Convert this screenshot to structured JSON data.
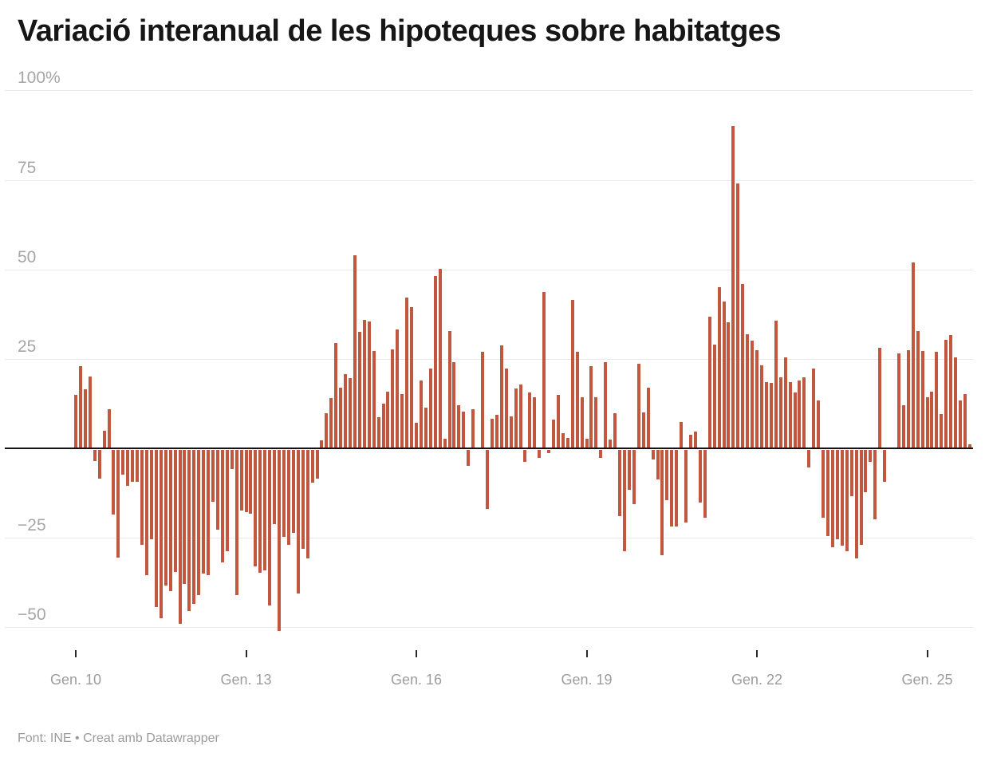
{
  "title": "Variació interanual de les hipoteques sobre habitatges",
  "footer": "Font: INE • Creat amb Datawrapper",
  "colors": {
    "bar": "#c1573e",
    "grid": "#e9e9e9",
    "zero_line": "#141414",
    "axis_text": "#a6a6a6",
    "x_axis_text": "#9d9d9d",
    "title_text": "#161616",
    "footer_text": "#9b9b9b",
    "background": "#ffffff"
  },
  "chart_data": {
    "type": "bar",
    "title": "Variació interanual de les hipoteques sobre habitatges",
    "unit": "%",
    "frequency": "monthly",
    "x_start": "2010-01",
    "x_end": "2025-10",
    "ylim": [
      -55,
      100
    ],
    "grid": "horizontal",
    "legend": "none",
    "source": "Font: INE",
    "tool": "Creat amb Datawrapper",
    "y_ticks": [
      {
        "v": 100,
        "label": "100%"
      },
      {
        "v": 75,
        "label": "75"
      },
      {
        "v": 50,
        "label": "50"
      },
      {
        "v": 25,
        "label": "25"
      },
      {
        "v": -25,
        "label": "−25"
      },
      {
        "v": -50,
        "label": "−50"
      }
    ],
    "x_ticks": [
      {
        "month_index": 0,
        "label": "Gen. 10"
      },
      {
        "month_index": 36,
        "label": "Gen. 13"
      },
      {
        "month_index": 72,
        "label": "Gen. 16"
      },
      {
        "month_index": 108,
        "label": "Gen. 19"
      },
      {
        "month_index": 144,
        "label": "Gen. 22"
      },
      {
        "month_index": 180,
        "label": "Gen. 25"
      }
    ],
    "values": [
      15,
      23,
      16.5,
      20,
      -3,
      -8,
      5,
      11,
      -18,
      -30,
      -7,
      -10,
      -9,
      -9,
      -26.5,
      -35,
      -25,
      -44,
      -47,
      -38,
      -39.5,
      -34,
      -48.5,
      -37.5,
      -45,
      -43,
      -40.5,
      -34.5,
      -35,
      -14.4,
      -22.3,
      -31.4,
      -28.4,
      -5.3,
      -40.5,
      -17,
      -17.4,
      -17.8,
      -32.6,
      -34.3,
      -33.7,
      -43.5,
      -20.8,
      -50.5,
      -24.2,
      -26.5,
      -23.1,
      -40.2,
      -27.7,
      -30.3,
      -9.1,
      -8,
      2.3,
      9.8,
      14,
      29.5,
      17,
      20.8,
      19.7,
      54,
      32.6,
      36,
      35.4,
      27.3,
      8.7,
      12.5,
      15.9,
      27.7,
      33.3,
      15.2,
      42.2,
      39.5,
      7.2,
      18.9,
      11.4,
      22.3,
      48.1,
      50.2,
      2.7,
      32.8,
      24.2,
      12.1,
      10.2,
      -4.5,
      11,
      0.3,
      26.9,
      -16.5,
      8.3,
      9.3,
      28.8,
      22.3,
      8.9,
      16.7,
      17.8,
      -3.4,
      15.7,
      14.2,
      -2.3,
      43.7,
      -0.8,
      8,
      14.9,
      4.3,
      2.8,
      41.4,
      27,
      14.2,
      2.6,
      23,
      14.3,
      -2.2,
      24.1,
      2.5,
      9.9,
      -18.5,
      -28.3,
      -11.1,
      -15.1,
      23.6,
      10.1,
      17,
      -2.7,
      -8.3,
      -29.5,
      -14.1,
      -21.4,
      -21.5,
      7.4,
      -20.2,
      3.7,
      4.8,
      -14.7,
      -18.9,
      36.8,
      29.1,
      45,
      41,
      35.3,
      90,
      74,
      46,
      31.8,
      30.2,
      27.4,
      23.1,
      18.5,
      18.2,
      35.6,
      19.9,
      25.5,
      18.5,
      15.7,
      19,
      19.9,
      -4.8,
      22.4,
      13.5,
      -18.9,
      -24.1,
      -27.1,
      -24.9,
      -26.7,
      -28.2,
      -12.9,
      -30.4,
      -26.5,
      -11.8,
      -3.3,
      -19.3,
      28,
      -9,
      0.3,
      0.3,
      26.6,
      12,
      27.4,
      52,
      32.8,
      27.2,
      14.2,
      15.8,
      26.9,
      9.7,
      30.4,
      31.7,
      25.5,
      13.5,
      15.1,
      1.2
    ]
  }
}
